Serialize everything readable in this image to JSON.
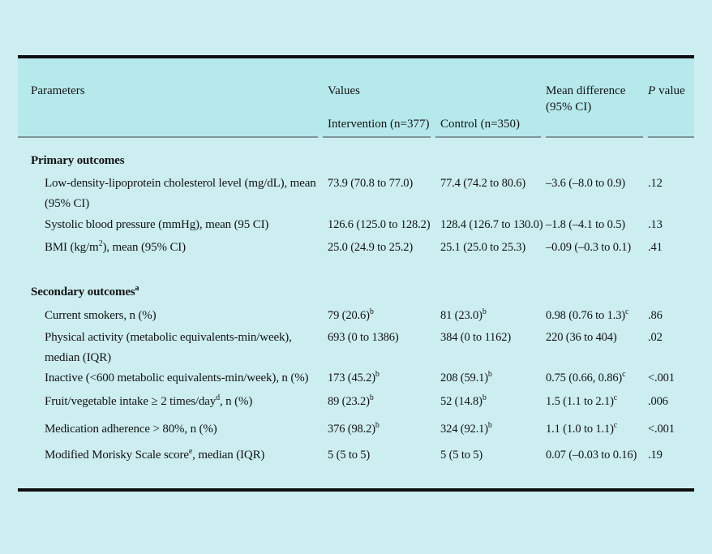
{
  "table": {
    "header": {
      "parameters": "Parameters",
      "values": "Values",
      "mean_diff": "Mean difference (95% CI)",
      "p_italic": "P",
      "p_word": "value",
      "sub_intervention": "Intervention (n=377)",
      "sub_control": "Control (n=350)"
    },
    "primary": {
      "heading": "Primary outcomes",
      "rows": [
        {
          "label_pre": "Low-density-lipoprotein cholesterol level (mg/dL), mean (95% CI)",
          "intervention": "73.9 (70.8 to 77.0)",
          "control": "77.4 (74.2 to 80.6)",
          "mean_diff": "–3.6 (–8.0 to 0.9)",
          "p": ".12"
        },
        {
          "label_pre": "Systolic blood pressure (mmHg), mean (95 CI)",
          "intervention": "126.6 (125.0 to 128.2)",
          "control": "128.4 (126.7 to 130.0)",
          "mean_diff": "–1.8 (–4.1 to 0.5)",
          "p": ".13"
        },
        {
          "label_pre": "BMI (kg/m",
          "label_sup": "2",
          "label_post": "), mean (95% CI)",
          "intervention": "25.0 (24.9 to 25.2)",
          "control": "25.1 (25.0 to 25.3)",
          "mean_diff": "–0.09 (–0.3 to 0.1)",
          "p": ".41"
        }
      ]
    },
    "secondary": {
      "heading_pre": "Secondary outcomes",
      "heading_sup": "a",
      "rows": [
        {
          "label_pre": "Current smokers, n (%)",
          "intervention": "79 (20.6)",
          "intervention_sup": "b",
          "control": "81 (23.0)",
          "control_sup": "b",
          "mean_diff": "0.98 (0.76 to 1.3)",
          "mean_diff_sup": "c",
          "p": ".86"
        },
        {
          "label_pre": "Physical activity (metabolic equivalents-min/week), median (IQR)",
          "intervention": "693 (0 to 1386)",
          "control": "384 (0 to 1162)",
          "mean_diff": "220 (36 to 404)",
          "p": ".02"
        },
        {
          "label_pre": "Inactive (<600 metabolic equivalents-min/week), n (%)",
          "intervention": "173 (45.2)",
          "intervention_sup": "b",
          "control": "208 (59.1)",
          "control_sup": "b",
          "mean_diff": "0.75 (0.66, 0.86)",
          "mean_diff_sup": "c",
          "p": "<.001"
        },
        {
          "label_pre": "Fruit/vegetable intake ≥ 2 times/day",
          "label_sup": "d",
          "label_post": ", n (%)",
          "intervention": "89 (23.2)",
          "intervention_sup": "b",
          "control": "52 (14.8)",
          "control_sup": "b",
          "mean_diff": "1.5 (1.1 to 2.1)",
          "mean_diff_sup": "c",
          "p": ".006"
        },
        {
          "label_pre": "Medication adherence > 80%, n (%)",
          "intervention": "376 (98.2)",
          "intervention_sup": "b",
          "control": "324 (92.1)",
          "control_sup": "b",
          "mean_diff": "1.1 (1.0 to 1.1)",
          "mean_diff_sup": "c",
          "p": "<.001"
        },
        {
          "label_pre": "Modified Morisky Scale score",
          "label_sup": "e",
          "label_post": ", median (IQR)",
          "intervention": "5 (5 to 5)",
          "control": "5 (5 to 5)",
          "mean_diff": "0.07 (–0.03 to 0.16)",
          "p": ".19"
        }
      ]
    },
    "colors": {
      "page_background": "#cdeef1",
      "header_band": "#b6e9ec",
      "rule_gray": "#7f9597",
      "bar_black": "#0e0e0e"
    }
  }
}
